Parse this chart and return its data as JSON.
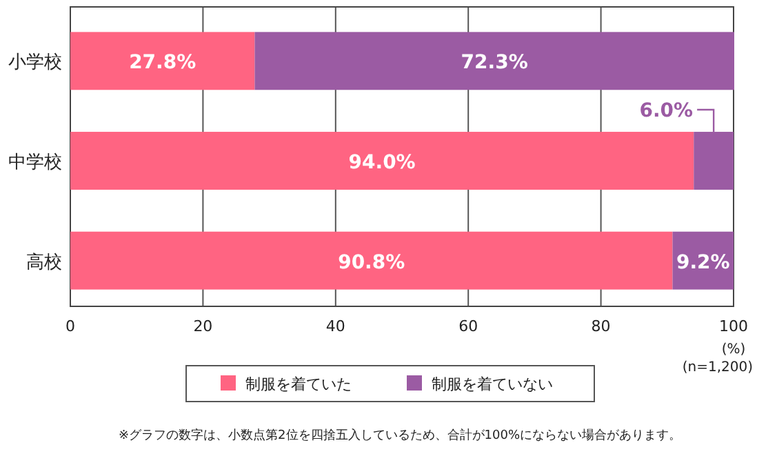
{
  "chart_data": {
    "type": "bar",
    "orientation": "horizontal",
    "stacked": true,
    "categories": [
      "小学校",
      "中学校",
      "高校"
    ],
    "series": [
      {
        "name": "制服を着ていた",
        "color": "#ff6482",
        "values": [
          27.8,
          94.0,
          90.8
        ],
        "value_labels": [
          "27.8%",
          "94.0%",
          "90.8%"
        ]
      },
      {
        "name": "制服を着ていない",
        "color": "#9b5ba3",
        "values": [
          72.3,
          6.0,
          9.2
        ],
        "value_labels": [
          "72.3%",
          "6.0%",
          "9.2%"
        ]
      }
    ],
    "xlim": [
      0,
      100
    ],
    "xticks": [
      0,
      20,
      40,
      60,
      80,
      100
    ],
    "xlabel": "(%)",
    "grid": "x",
    "legend": "bottom",
    "annotations": [
      "(n=1,200)",
      "※グラフの数字は、小数点第2位を四捨五入しているため、合計が100%にならない場合があります。"
    ]
  }
}
